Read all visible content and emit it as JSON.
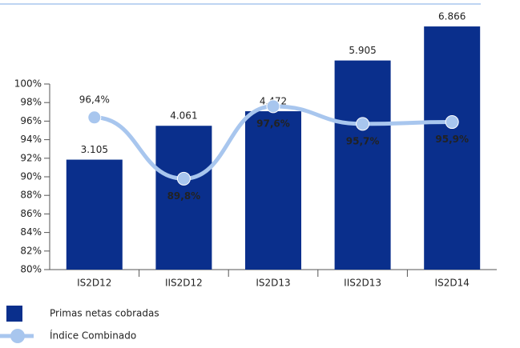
{
  "chart_data": {
    "type": "bar",
    "categories": [
      "IS2D12",
      "IIS2D12",
      "IS2D13",
      "IIS2D13",
      "IS2D14"
    ],
    "series": [
      {
        "name": "Primas netas cobradas",
        "type": "bar",
        "axis": "y2",
        "color": "#0a2f8c",
        "values": [
          3105,
          4061,
          4472,
          5905,
          6866
        ],
        "value_labels": [
          "3.105",
          "4.061",
          "4.472",
          "5.905",
          "6.866"
        ]
      },
      {
        "name": "Índice Combinado",
        "type": "line",
        "color": "#a8c6ee",
        "values": [
          96.4,
          89.8,
          97.6,
          95.7,
          95.9
        ],
        "value_labels": [
          "96,4%",
          "89,8%",
          "97,6%",
          "95,7%",
          "95,9%"
        ]
      }
    ],
    "ylim": [
      80,
      100
    ],
    "yticks": [
      {
        "value": 80,
        "label": "80%"
      },
      {
        "value": 82,
        "label": "82%"
      },
      {
        "value": 84,
        "label": "84%"
      },
      {
        "value": 86,
        "label": "86%"
      },
      {
        "value": 88,
        "label": "88%"
      },
      {
        "value": 90,
        "label": "90%"
      },
      {
        "value": 92,
        "label": "92%"
      },
      {
        "value": 94,
        "label": "94%"
      },
      {
        "value": 96,
        "label": "96%"
      },
      {
        "value": 98,
        "label": "98%"
      },
      {
        "value": 100,
        "label": "100%"
      }
    ],
    "y2lim": [
      0,
      7500
    ]
  }
}
